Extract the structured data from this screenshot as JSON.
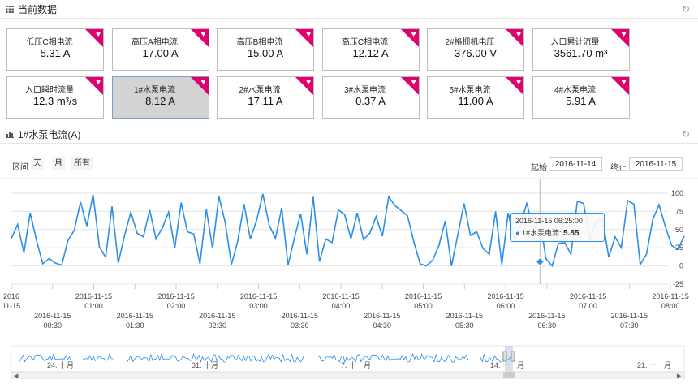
{
  "header": {
    "title": "当前数据",
    "grid_icon": "grid-icon",
    "refresh_icon": "refresh-icon"
  },
  "cards": [
    {
      "label": "低压C相电流",
      "value": "5.31 A"
    },
    {
      "label": "高压A相电流",
      "value": "17.00 A"
    },
    {
      "label": "高压B相电流",
      "value": "15.00 A"
    },
    {
      "label": "高压C相电流",
      "value": "12.12 A"
    },
    {
      "label": "2#格栅机电压",
      "value": "376.00 V"
    },
    {
      "label": "入口累计流量",
      "value": "3561.70 m³"
    },
    {
      "label": "入口瞬时流量",
      "value": "12.3 m³/s"
    },
    {
      "label": "1#水泵电流",
      "value": "8.12 A",
      "selected": true
    },
    {
      "label": "2#水泵电流",
      "value": "17.11 A"
    },
    {
      "label": "3#水泵电流",
      "value": "0.37 A"
    },
    {
      "label": "5#水泵电流",
      "value": "11.00 A"
    },
    {
      "label": "4#水泵电流",
      "value": "5.91 A"
    }
  ],
  "chart_section": {
    "title": "1#水泵电流(A)",
    "chart_icon": "bar-chart-icon",
    "refresh_icon": "refresh-icon"
  },
  "range": {
    "label": "区间",
    "buttons": [
      "天",
      "月",
      "所有"
    ]
  },
  "dates": {
    "start_label": "起始",
    "start": "2016-11-14",
    "end_label": "终止",
    "end": "2016-11-15"
  },
  "tooltip": {
    "time": "2016-11-15 06:25:00",
    "series": "1#水泵电流",
    "value": "5.85"
  },
  "colors": {
    "line": "#2b8fe8",
    "accent": "#e0006e",
    "selected_card": "#d3d3d3"
  },
  "navigator": {
    "labels": [
      "24. 十月",
      "31. 十月",
      "7. 十一月",
      "14. 十一月",
      "21. 十一月"
    ]
  },
  "chart_data": {
    "type": "line",
    "series": [
      {
        "name": "1#水泵电流",
        "values": [
          38,
          57,
          18,
          73,
          35,
          3,
          10,
          4,
          1,
          35,
          49,
          88,
          55,
          98,
          26,
          12,
          82,
          4,
          42,
          74,
          45,
          40,
          77,
          37,
          52,
          74,
          25,
          87,
          47,
          44,
          3,
          78,
          24,
          96,
          60,
          2,
          34,
          85,
          37,
          63,
          99,
          56,
          38,
          80,
          1,
          38,
          72,
          16,
          95,
          6,
          37,
          32,
          77,
          71,
          37,
          73,
          36,
          45,
          68,
          41,
          95,
          83,
          76,
          69,
          33,
          3,
          0,
          8,
          28,
          62,
          0,
          43,
          86,
          42,
          47,
          24,
          16,
          75,
          2,
          73,
          36,
          58,
          87,
          43,
          67,
          10,
          0,
          31,
          32,
          16,
          89,
          86,
          35,
          61,
          65,
          12,
          40,
          25,
          90,
          85,
          2,
          16,
          64,
          84,
          54,
          28,
          23,
          41
        ]
      }
    ],
    "x_start": "2016-11-15 00:00",
    "x_end": "2016-11-15 08:10",
    "x_ticks_top": [
      "2016\n11-15",
      "2016-11-15\n01:00",
      "2016-11-15\n02:00",
      "2016-11-15\n03:00",
      "2016-11-15\n04:00",
      "2016-11-15\n05:00",
      "2016-11-15\n06:00",
      "2016-11-15\n07:00",
      "2016-11-15\n08:00"
    ],
    "x_ticks_bottom": [
      "2016-11-15\n00:30",
      "2016-11-15\n01:30",
      "2016-11-15\n02:30",
      "2016-11-15\n03:30",
      "2016-11-15\n04:30",
      "2016-11-15\n05:30",
      "2016-11-15\n06:30",
      "2016-11-15\n07:30"
    ],
    "y_ticks": [
      100,
      75,
      50,
      25,
      0,
      -25
    ],
    "ylim": [
      -25,
      100
    ],
    "highlight": {
      "x": "2016-11-15 06:25:00",
      "y": 5.85
    }
  }
}
